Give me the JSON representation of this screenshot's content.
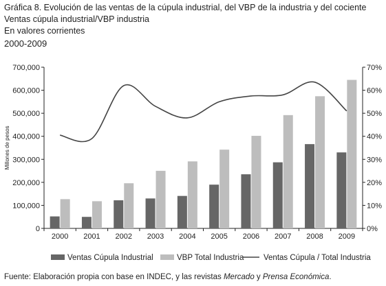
{
  "header": {
    "title": "Gráfica 8. Evolución de las ventas de la cúpula industrial, del VBP de la industria y del cociente",
    "subtitle": "Ventas cúpula industrial/VBP industria",
    "units_note": "En valores corrientes",
    "period": "2000-2009"
  },
  "chart_data": {
    "type": "bar",
    "categories": [
      "2000",
      "2001",
      "2002",
      "2003",
      "2004",
      "2005",
      "2006",
      "2007",
      "2008",
      "2009"
    ],
    "series": [
      {
        "name": "Ventas Cúpula Industrial",
        "type": "bar",
        "axis": "left",
        "color": "#666666",
        "values": [
          52000,
          50000,
          122000,
          130000,
          141000,
          190000,
          235000,
          287000,
          366000,
          330000
        ]
      },
      {
        "name": "VBP Total Industria",
        "type": "bar",
        "axis": "left",
        "color": "#bdbdbd",
        "values": [
          127000,
          118000,
          196000,
          250000,
          291000,
          342000,
          402000,
          492000,
          574000,
          645000
        ]
      },
      {
        "name": "Ventas Cúpula / Total Industria",
        "type": "line",
        "axis": "right",
        "color": "#444444",
        "values": [
          40.5,
          39,
          62,
          53,
          48,
          55,
          57.5,
          58,
          63.5,
          51
        ]
      }
    ],
    "ylabel": "Millones de pesos",
    "ylim": [
      0,
      700000
    ],
    "yticks": [
      "0",
      "100,000",
      "200,000",
      "300,000",
      "400,000",
      "500,000",
      "600,000",
      "700,000"
    ],
    "y2lim": [
      0,
      70
    ],
    "y2ticks": [
      "0%",
      "10%",
      "20%",
      "30%",
      "40%",
      "50%",
      "60%",
      "70%"
    ],
    "grid": false,
    "legend_position": "bottom"
  },
  "footer": {
    "source_prefix": "Fuente: Elaboración propia con base en INDEC, y las revistas ",
    "source_mag1": "Mercado",
    "source_connector": " y ",
    "source_mag2": "Prensa Económica",
    "source_suffix": "."
  }
}
